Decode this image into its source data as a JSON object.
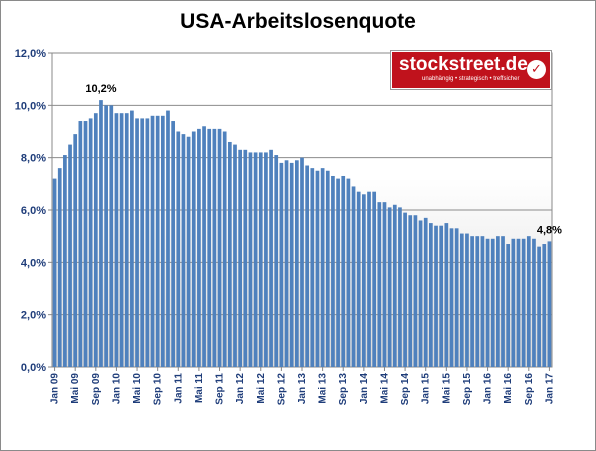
{
  "logo": {
    "name": "stockstreet.de",
    "tagline": "unabhängig • strategisch • treffsicher",
    "icon": "check-icon"
  },
  "chart_data": {
    "type": "bar",
    "title": "USA-Arbeitslosenquote",
    "xlabel": "",
    "ylabel": "",
    "ylim": [
      0,
      12
    ],
    "yticks": [
      "0,0%",
      "2,0%",
      "4,0%",
      "6,0%",
      "8,0%",
      "10,0%",
      "12,0%"
    ],
    "grid": true,
    "bar_color": "#4f81bd",
    "tick_labels": [
      {
        "index": 0,
        "label": "Jan 09"
      },
      {
        "index": 4,
        "label": "Mai 09"
      },
      {
        "index": 8,
        "label": "Sep 09"
      },
      {
        "index": 12,
        "label": "Jan 10"
      },
      {
        "index": 16,
        "label": "Mai 10"
      },
      {
        "index": 20,
        "label": "Sep 10"
      },
      {
        "index": 24,
        "label": "Jan 11"
      },
      {
        "index": 28,
        "label": "Mai 11"
      },
      {
        "index": 32,
        "label": "Sep 11"
      },
      {
        "index": 36,
        "label": "Jan 12"
      },
      {
        "index": 40,
        "label": "Mai 12"
      },
      {
        "index": 44,
        "label": "Sep 12"
      },
      {
        "index": 48,
        "label": "Jan 13"
      },
      {
        "index": 52,
        "label": "Mai 13"
      },
      {
        "index": 56,
        "label": "Sep 13"
      },
      {
        "index": 60,
        "label": "Jan 14"
      },
      {
        "index": 64,
        "label": "Mai 14"
      },
      {
        "index": 68,
        "label": "Sep 14"
      },
      {
        "index": 72,
        "label": "Jan 15"
      },
      {
        "index": 76,
        "label": "Mai 15"
      },
      {
        "index": 80,
        "label": "Sep 15"
      },
      {
        "index": 84,
        "label": "Jan 16"
      },
      {
        "index": 88,
        "label": "Mai 16"
      },
      {
        "index": 92,
        "label": "Sep 16"
      },
      {
        "index": 96,
        "label": "Jan 17"
      }
    ],
    "values": [
      7.8,
      8.3,
      8.7,
      9.0,
      9.4,
      9.5,
      9.5,
      9.6,
      9.8,
      10.0,
      9.9,
      9.9,
      9.8,
      9.8,
      9.9,
      9.9,
      9.6,
      9.4,
      9.4,
      9.5,
      9.5,
      9.4,
      9.8,
      9.3,
      9.1,
      9.0,
      9.0,
      9.1,
      9.0,
      9.1,
      9.0,
      9.0,
      9.0,
      8.8,
      8.6,
      8.5,
      8.3,
      8.3,
      8.2,
      8.2,
      8.2,
      8.2,
      8.2,
      8.0,
      7.8,
      7.8,
      7.7,
      7.9,
      8.0,
      7.7,
      7.5,
      7.6,
      7.5,
      7.5,
      7.3,
      7.2,
      7.2,
      7.2,
      6.9,
      6.7,
      6.6,
      6.7,
      6.7,
      6.2,
      6.3,
      6.1,
      6.2,
      6.2,
      5.9,
      5.7,
      5.8,
      5.6,
      5.7,
      5.5,
      5.4,
      5.4,
      5.6,
      5.3,
      5.2,
      5.1,
      5.0,
      5.0,
      5.1,
      5.0,
      4.9,
      4.9,
      5.0,
      5.0,
      4.8,
      4.9,
      4.9,
      4.9,
      5.0,
      4.9,
      4.6,
      4.7,
      4.8
    ],
    "display_values": [
      7.2,
      7.6,
      8.1,
      8.5,
      8.9,
      9.4,
      9.4,
      9.5,
      9.7,
      10.2,
      10.0,
      10.0,
      9.7,
      9.7,
      9.7,
      9.8,
      9.5,
      9.5,
      9.5,
      9.6,
      9.6,
      9.6,
      9.8,
      9.4,
      9.0,
      8.9,
      8.8,
      9.0,
      9.1,
      9.2,
      9.1,
      9.1,
      9.1,
      9.0,
      8.6,
      8.5,
      8.3,
      8.3,
      8.2,
      8.2,
      8.2,
      8.2,
      8.3,
      8.1,
      7.8,
      7.9,
      7.8,
      7.9,
      8.0,
      7.7,
      7.6,
      7.5,
      7.6,
      7.5,
      7.3,
      7.2,
      7.3,
      7.2,
      6.9,
      6.7,
      6.6,
      6.7,
      6.7,
      6.3,
      6.3,
      6.1,
      6.2,
      6.1,
      5.9,
      5.8,
      5.8,
      5.6,
      5.7,
      5.5,
      5.4,
      5.4,
      5.5,
      5.3,
      5.3,
      5.1,
      5.1,
      5.0,
      5.0,
      5.0,
      4.9,
      4.9,
      5.0,
      5.0,
      4.7,
      4.9,
      4.9,
      4.9,
      5.0,
      4.9,
      4.6,
      4.7,
      4.8
    ],
    "annotations": [
      {
        "index": 9,
        "text": "10,2%"
      },
      {
        "index": 96,
        "text": "4,8%"
      }
    ]
  }
}
